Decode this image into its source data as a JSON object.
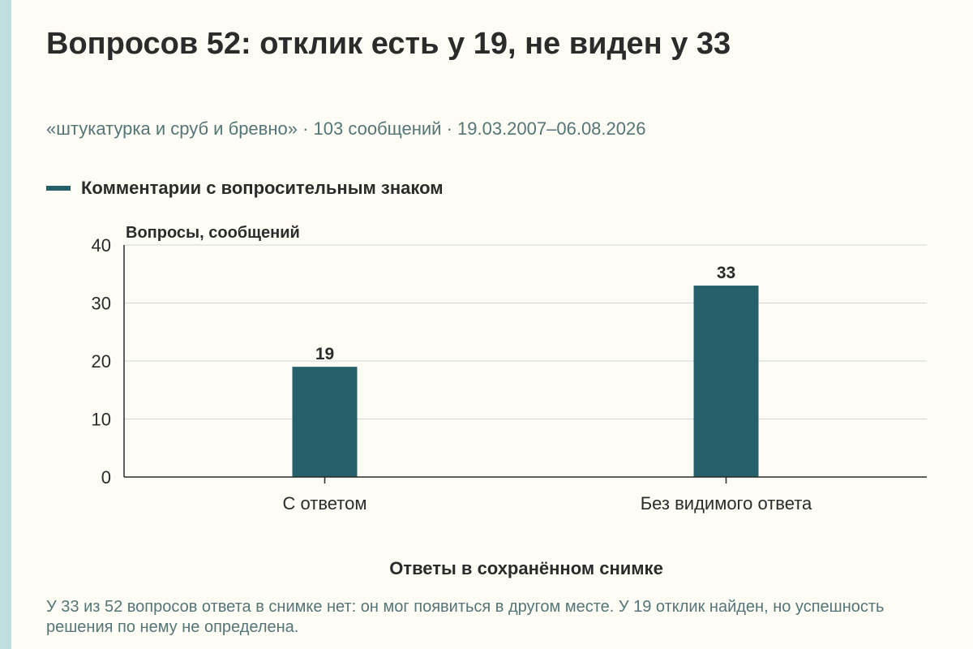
{
  "title": "Вопросов 52: отклик есть у 19, не виден у 33",
  "subtitle": "«штукатурка и сруб и бревно» · 103 сообщений · 19.03.2007–06.08.2026",
  "note": "У 33 из 52 вопросов ответа в снимке нет: он мог появиться в другом месте. У 19 отклик найден, но успешность решения по нему не определена.",
  "colors": {
    "background": "#fdfcf5",
    "accent_strip": "#bfdfdf",
    "bar": "#25606b",
    "text_primary": "#2b2b2b",
    "text_secondary": "#557577",
    "grid": "#d4d4d4"
  },
  "chart_data": {
    "type": "bar",
    "title": "Вопросов 52: отклик есть у 19, не виден у 33",
    "categories": [
      "С ответом",
      "Без видимого ответа"
    ],
    "series": [
      {
        "name": "Комментарии с вопросительным знаком",
        "values": [
          19,
          33
        ],
        "color": "#25606b"
      }
    ],
    "xlabel": "Ответы в сохранённом снимке",
    "ylabel": "Вопросы, сообщений",
    "ylim": [
      0,
      40
    ],
    "yticks": [
      "0",
      "10",
      "20",
      "30",
      "40"
    ],
    "data_labels": [
      "19",
      "33"
    ],
    "grid": true,
    "legend_position": "top-left"
  }
}
